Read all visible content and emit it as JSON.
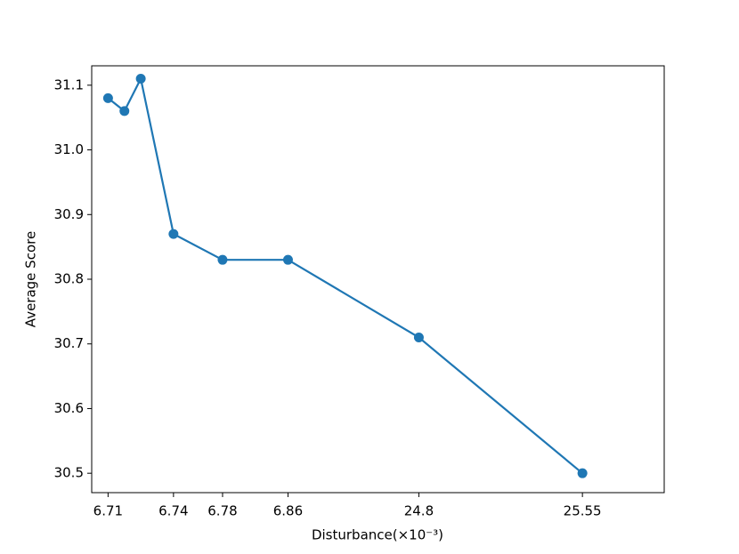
{
  "chart_data": {
    "type": "line",
    "xlabel": "Disturbance(×10⁻³)",
    "ylabel": "Average Score",
    "x": [
      0,
      1,
      2,
      4,
      7,
      11,
      19,
      29
    ],
    "series": [
      {
        "color": "#1f77b4",
        "values": [
          31.08,
          31.06,
          31.11,
          30.87,
          30.83,
          30.83,
          30.71,
          30.5
        ]
      }
    ],
    "xlim": [
      -1,
      34
    ],
    "xticks": [
      {
        "value": 0,
        "label": "6.71"
      },
      {
        "value": 4,
        "label": "6.74"
      },
      {
        "value": 7,
        "label": "6.78"
      },
      {
        "value": 11,
        "label": "6.86"
      },
      {
        "value": 19,
        "label": "24.8"
      },
      {
        "value": 29,
        "label": "25.55"
      }
    ],
    "ylim": [
      30.47,
      31.13
    ],
    "yticks": [
      {
        "value": 30.5,
        "label": "30.5"
      },
      {
        "value": 30.6,
        "label": "30.6"
      },
      {
        "value": 30.7,
        "label": "30.7"
      },
      {
        "value": 30.8,
        "label": "30.8"
      },
      {
        "value": 30.9,
        "label": "30.9"
      },
      {
        "value": 31.0,
        "label": "31.0"
      },
      {
        "value": 31.1,
        "label": "31.1"
      }
    ],
    "grid": false
  }
}
